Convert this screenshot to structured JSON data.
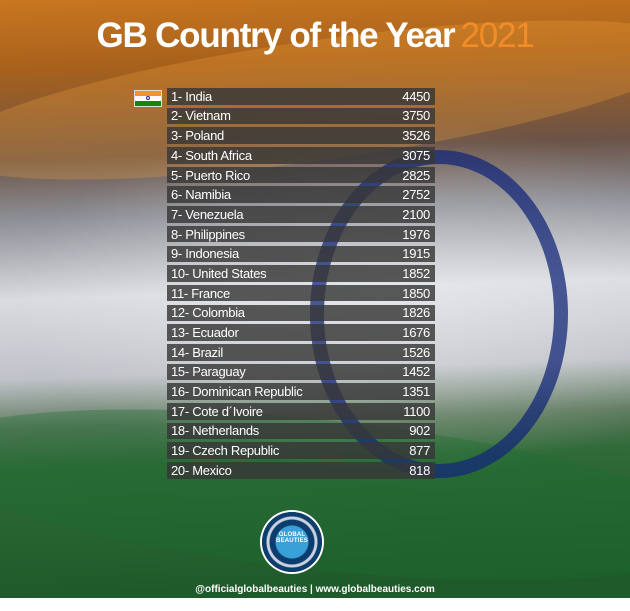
{
  "header": {
    "title": "GB Country of the Year",
    "year": "2021"
  },
  "colors": {
    "year_accent": "#f28c28",
    "row_bg": "#373737",
    "text": "#ffffff"
  },
  "ranking": [
    {
      "label": "1- India",
      "value": "4450"
    },
    {
      "label": "2- Vietnam",
      "value": "3750"
    },
    {
      "label": "3- Poland",
      "value": "3526"
    },
    {
      "label": "4- South Africa",
      "value": "3075"
    },
    {
      "label": "5- Puerto Rico",
      "value": "2825"
    },
    {
      "label": "6- Namibia",
      "value": "2752"
    },
    {
      "label": "7- Venezuela",
      "value": "2100"
    },
    {
      "label": "8- Philippines",
      "value": "1976"
    },
    {
      "label": "9- Indonesia",
      "value": "1915"
    },
    {
      "label": "10- United States",
      "value": "1852"
    },
    {
      "label": "11- France",
      "value": "1850"
    },
    {
      "label": "12- Colombia",
      "value": "1826"
    },
    {
      "label": "13- Ecuador",
      "value": "1676"
    },
    {
      "label": "14- Brazil",
      "value": "1526"
    },
    {
      "label": "15- Paraguay",
      "value": "1452"
    },
    {
      "label": "16- Dominican Republic",
      "value": "1351"
    },
    {
      "label": "17- Cote d´Ivoire",
      "value": "1100"
    },
    {
      "label": "18- Netherlands",
      "value": "902"
    },
    {
      "label": "19- Czech Republic",
      "value": "877"
    },
    {
      "label": "20- Mexico",
      "value": "818"
    }
  ],
  "logo": {
    "text": "GLOBAL BEAUTIES"
  },
  "footer": {
    "text": "@officialglobalbeauties  |  www.globalbeauties.com"
  }
}
